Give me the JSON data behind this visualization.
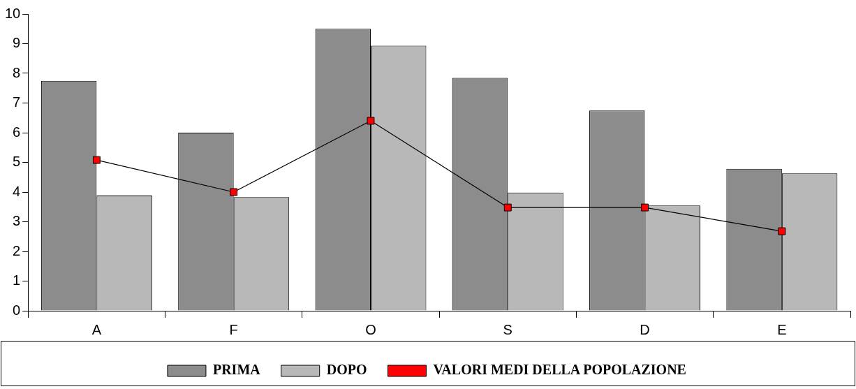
{
  "chart_data": {
    "type": "bar",
    "categories": [
      "A",
      "F",
      "O",
      "S",
      "D",
      "E"
    ],
    "series": [
      {
        "name": "PRIMA",
        "color": "#8c8c8c",
        "values": [
          7.75,
          6.0,
          9.5,
          7.85,
          6.75,
          4.78
        ]
      },
      {
        "name": "DOPO",
        "color": "#b8b8b8",
        "values": [
          3.88,
          3.83,
          8.93,
          3.98,
          3.55,
          4.63
        ]
      },
      {
        "name": "VALORI MEDI DELLA POPOLAZIONE",
        "type": "line",
        "color": "#ff0000",
        "values": [
          5.08,
          4.0,
          6.4,
          3.48,
          3.48,
          2.68
        ],
        "marker": "square"
      }
    ],
    "ylim": [
      0,
      10
    ],
    "yticks": [
      0,
      1,
      2,
      3,
      4,
      5,
      6,
      7,
      8,
      9,
      10
    ],
    "grid": false,
    "legend": "bottom"
  }
}
